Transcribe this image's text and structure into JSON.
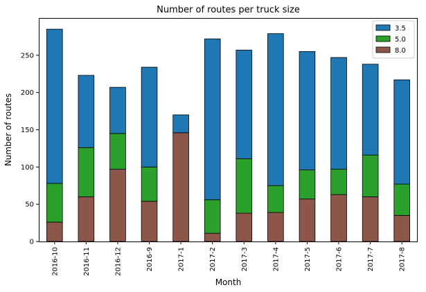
{
  "chart_data": {
    "type": "bar",
    "stacked": true,
    "title": "Number of routes per truck size",
    "xlabel": "Month",
    "ylabel": "Number of routes",
    "categories": [
      "2016-10",
      "2016-11",
      "2016-12",
      "2016-9",
      "2017-1",
      "2017-2",
      "2017-3",
      "2017-4",
      "2017-5",
      "2017-6",
      "2017-7",
      "2017-8"
    ],
    "series": [
      {
        "name": "8.0",
        "color": "#8c564b",
        "values": [
          26,
          60,
          97,
          54,
          146,
          11,
          38,
          39,
          57,
          63,
          60,
          35
        ]
      },
      {
        "name": "5.0",
        "color": "#2ca02c",
        "values": [
          52,
          66,
          48,
          46,
          0,
          45,
          73,
          36,
          39,
          34,
          56,
          42
        ]
      },
      {
        "name": "3.5",
        "color": "#1f77b4",
        "values": [
          207,
          97,
          62,
          134,
          24,
          216,
          146,
          204,
          159,
          150,
          122,
          140
        ]
      }
    ],
    "legend_order": [
      "3.5",
      "5.0",
      "8.0"
    ],
    "ylim": [
      0,
      300
    ],
    "yticks": [
      0,
      50,
      100,
      150,
      200,
      250
    ],
    "grid": false,
    "legend_position": "top-right"
  }
}
